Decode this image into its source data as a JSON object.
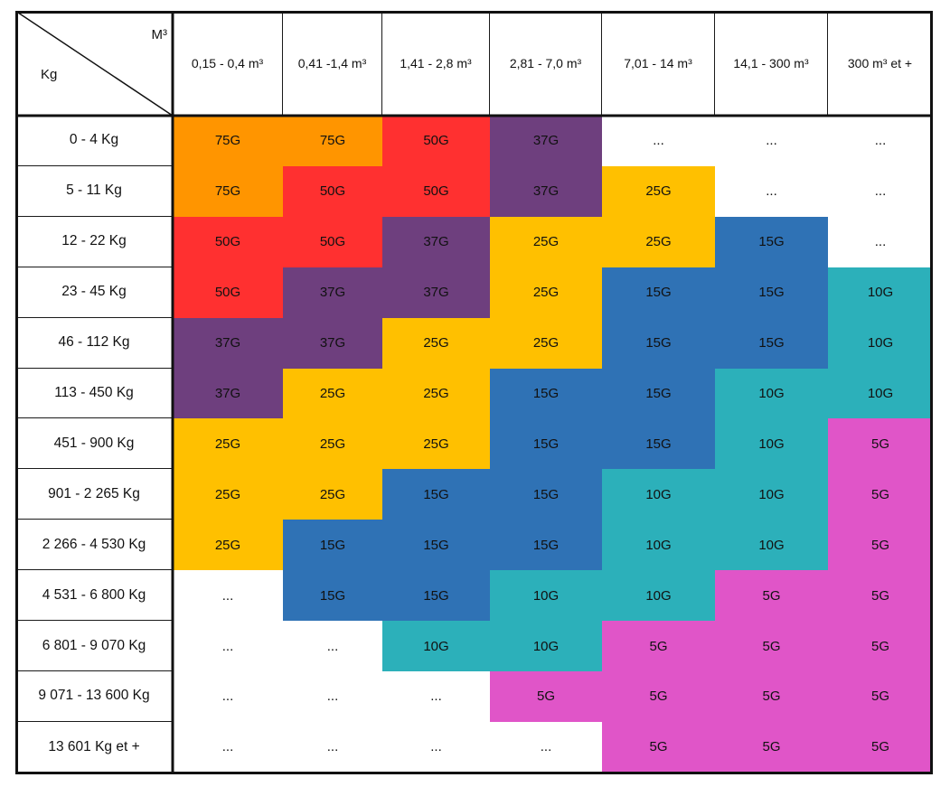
{
  "corner": {
    "top_right": "M³",
    "bottom_left": "Kg"
  },
  "columns": [
    "0,15 - 0,4 m³",
    "0,41 -1,4 m³",
    "1,41 - 2,8 m³",
    "2,81 - 7,0 m³",
    "7,01 - 14 m³",
    "14,1 - 300 m³",
    "300 m³ et +"
  ],
  "rows": [
    {
      "label": "0 - 4 Kg",
      "cells": [
        "75G",
        "75G",
        "50G",
        "37G",
        "...",
        "...",
        "..."
      ]
    },
    {
      "label": "5 - 11 Kg",
      "cells": [
        "75G",
        "50G",
        "50G",
        "37G",
        "25G",
        "...",
        "..."
      ]
    },
    {
      "label": "12 - 22 Kg",
      "cells": [
        "50G",
        "50G",
        "37G",
        "25G",
        "25G",
        "15G",
        "..."
      ]
    },
    {
      "label": "23 - 45 Kg",
      "cells": [
        "50G",
        "37G",
        "37G",
        "25G",
        "15G",
        "15G",
        "10G"
      ]
    },
    {
      "label": "46 - 112 Kg",
      "cells": [
        "37G",
        "37G",
        "25G",
        "25G",
        "15G",
        "15G",
        "10G"
      ]
    },
    {
      "label": "113 - 450 Kg",
      "cells": [
        "37G",
        "25G",
        "25G",
        "15G",
        "15G",
        "10G",
        "10G"
      ]
    },
    {
      "label": "451 - 900 Kg",
      "cells": [
        "25G",
        "25G",
        "25G",
        "15G",
        "15G",
        "10G",
        "5G"
      ]
    },
    {
      "label": "901 - 2 265 Kg",
      "cells": [
        "25G",
        "25G",
        "15G",
        "15G",
        "10G",
        "10G",
        "5G"
      ]
    },
    {
      "label": "2 266 - 4 530 Kg",
      "cells": [
        "25G",
        "15G",
        "15G",
        "15G",
        "10G",
        "10G",
        "5G"
      ]
    },
    {
      "label": "4 531 - 6 800 Kg",
      "cells": [
        "...",
        "15G",
        "15G",
        "10G",
        "10G",
        "5G",
        "5G"
      ]
    },
    {
      "label": "6 801 - 9 070 Kg",
      "cells": [
        "...",
        "...",
        "10G",
        "10G",
        "5G",
        "5G",
        "5G"
      ]
    },
    {
      "label": "9 071 - 13 600 Kg",
      "cells": [
        "...",
        "...",
        "...",
        "5G",
        "5G",
        "5G",
        "5G"
      ]
    },
    {
      "label": "13 601 Kg et +",
      "cells": [
        "...",
        "...",
        "...",
        "...",
        "5G",
        "5G",
        "5G"
      ]
    }
  ],
  "colors": {
    "75G": "#ff9500",
    "50G": "#ff3030",
    "37G": "#6e3f7e",
    "25G": "#ffc000",
    "15G": "#2f72b5",
    "10G": "#2cb0ba",
    "5G": "#e055c8",
    "...": "#ffffff"
  }
}
